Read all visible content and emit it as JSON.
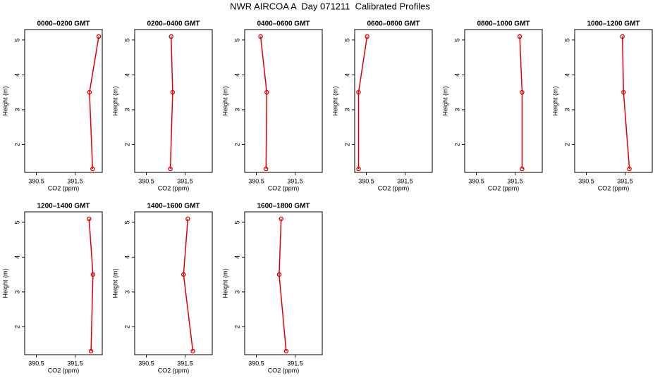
{
  "title": "NWR AIRCOA A  Day 071211  Calibrated Profiles",
  "chart_data": [
    {
      "type": "line",
      "title": "0000–0200 GMT",
      "xlabel": "CO2 (ppm)",
      "ylabel": "Height (m)",
      "color": "#e00000",
      "x": [
        392.11,
        391.87,
        391.95
      ],
      "values": [
        5.1,
        3.5,
        1.3
      ],
      "xlim": [
        390.2,
        392.2
      ],
      "ylim": [
        1.2,
        5.3
      ],
      "xticks": [
        390.5,
        391.5
      ],
      "yticks": [
        2,
        3,
        4,
        5
      ]
    },
    {
      "type": "line",
      "title": "0200–0400 GMT",
      "xlabel": "CO2 (ppm)",
      "ylabel": "Height (m)",
      "color": "#e00000",
      "x": [
        391.14,
        391.18,
        391.12
      ],
      "values": [
        5.1,
        3.5,
        1.3
      ],
      "xlim": [
        390.2,
        392.2
      ],
      "ylim": [
        1.2,
        5.3
      ],
      "xticks": [
        390.5,
        391.5
      ],
      "yticks": [
        2,
        3,
        4,
        5
      ]
    },
    {
      "type": "line",
      "title": "0400–0600 GMT",
      "xlabel": "CO2 (ppm)",
      "ylabel": "Height (m)",
      "color": "#e00000",
      "x": [
        390.61,
        390.77,
        390.75
      ],
      "values": [
        5.1,
        3.5,
        1.3
      ],
      "xlim": [
        390.2,
        392.2
      ],
      "ylim": [
        1.2,
        5.3
      ],
      "xticks": [
        390.5,
        391.5
      ],
      "yticks": [
        2,
        3,
        4,
        5
      ]
    },
    {
      "type": "line",
      "title": "0600–0800 GMT",
      "xlabel": "CO2 (ppm)",
      "ylabel": "Height (m)",
      "color": "#e00000",
      "x": [
        390.52,
        390.3,
        390.3
      ],
      "values": [
        5.1,
        3.5,
        1.3
      ],
      "xlim": [
        390.2,
        392.2
      ],
      "ylim": [
        1.2,
        5.3
      ],
      "xticks": [
        390.5,
        391.5
      ],
      "yticks": [
        2,
        3,
        4,
        5
      ]
    },
    {
      "type": "line",
      "title": "0800–1000 GMT",
      "xlabel": "CO2 (ppm)",
      "ylabel": "Height (m)",
      "color": "#e00000",
      "x": [
        391.62,
        391.68,
        391.68
      ],
      "values": [
        5.1,
        3.5,
        1.3
      ],
      "xlim": [
        390.2,
        392.2
      ],
      "ylim": [
        1.2,
        5.3
      ],
      "xticks": [
        390.5,
        391.5
      ],
      "yticks": [
        2,
        3,
        4,
        5
      ]
    },
    {
      "type": "line",
      "title": "1000–1200 GMT",
      "xlabel": "CO2 (ppm)",
      "ylabel": "Height (m)",
      "color": "#e00000",
      "x": [
        391.43,
        391.46,
        391.61
      ],
      "values": [
        5.1,
        3.5,
        1.3
      ],
      "xlim": [
        390.2,
        392.2
      ],
      "ylim": [
        1.2,
        5.3
      ],
      "xticks": [
        390.5,
        391.5
      ],
      "yticks": [
        2,
        3,
        4,
        5
      ]
    },
    {
      "type": "line",
      "title": "1200–1400 GMT",
      "xlabel": "CO2 (ppm)",
      "ylabel": "Height (m)",
      "color": "#e00000",
      "x": [
        391.86,
        391.96,
        391.91
      ],
      "values": [
        5.1,
        3.5,
        1.3
      ],
      "xlim": [
        390.2,
        392.2
      ],
      "ylim": [
        1.2,
        5.3
      ],
      "xticks": [
        390.5,
        391.5
      ],
      "yticks": [
        2,
        3,
        4,
        5
      ]
    },
    {
      "type": "line",
      "title": "1400–1600 GMT",
      "xlabel": "CO2 (ppm)",
      "ylabel": "Height (m)",
      "color": "#e00000",
      "x": [
        391.57,
        391.46,
        391.7
      ],
      "values": [
        5.1,
        3.5,
        1.3
      ],
      "xlim": [
        390.2,
        392.2
      ],
      "ylim": [
        1.2,
        5.3
      ],
      "xticks": [
        390.5,
        391.5
      ],
      "yticks": [
        2,
        3,
        4,
        5
      ]
    },
    {
      "type": "line",
      "title": "1600–1800 GMT",
      "xlabel": "CO2 (ppm)",
      "ylabel": "Height (m)",
      "color": "#e00000",
      "x": [
        391.14,
        391.09,
        391.27
      ],
      "values": [
        5.1,
        3.5,
        1.3
      ],
      "xlim": [
        390.2,
        392.2
      ],
      "ylim": [
        1.2,
        5.3
      ],
      "xticks": [
        390.5,
        391.5
      ],
      "yticks": [
        2,
        3,
        4,
        5
      ]
    }
  ]
}
